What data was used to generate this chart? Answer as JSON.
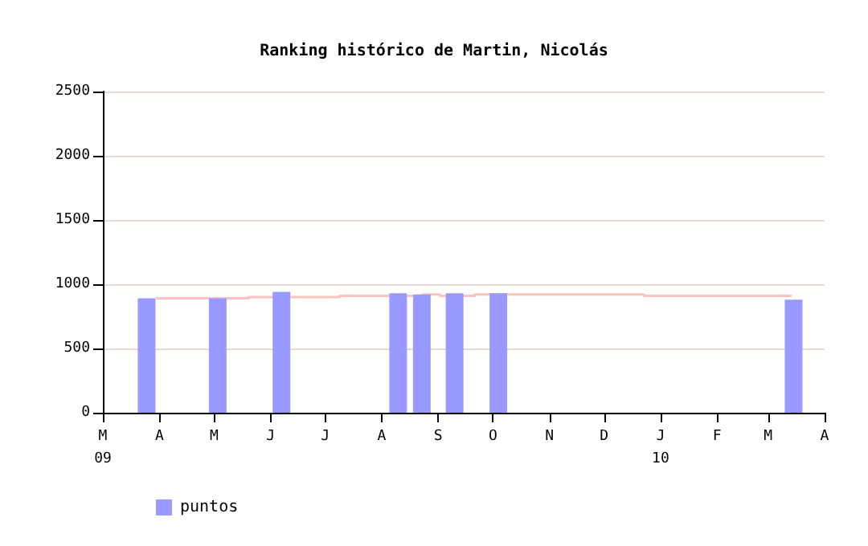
{
  "chart_data": {
    "type": "bar",
    "title": "Ranking histórico de Martin, Nicolás",
    "x": [
      "2009-03-25",
      "2009-05-03",
      "2009-06-07",
      "2009-08-10",
      "2009-08-23",
      "2009-09-10",
      "2009-10-04",
      "2010-03-15"
    ],
    "series": [
      {
        "name": "puntos",
        "color": "#9999ff",
        "values": [
          890,
          890,
          940,
          930,
          920,
          930,
          930,
          880
        ]
      },
      {
        "type": "step",
        "color": "#ffc0c0",
        "x": [
          "2009-03-30",
          "2009-05-20",
          "2009-07-09",
          "2009-08-23",
          "2009-09-02",
          "2009-09-21",
          "2009-12-23",
          "2010-03-14"
        ],
        "values": [
          890,
          900,
          910,
          920,
          910,
          920,
          910,
          910
        ]
      }
    ],
    "xlim": [
      "2009-03-01",
      "2010-04-01"
    ],
    "xticks": [
      {
        "value": "2009-03-01",
        "label": "M\n09"
      },
      {
        "value": "2009-04-01",
        "label": "A"
      },
      {
        "value": "2009-05-01",
        "label": "M"
      },
      {
        "value": "2009-06-01",
        "label": "J"
      },
      {
        "value": "2009-07-01",
        "label": "J"
      },
      {
        "value": "2009-08-01",
        "label": "A"
      },
      {
        "value": "2009-09-01",
        "label": "S"
      },
      {
        "value": "2009-10-01",
        "label": "O"
      },
      {
        "value": "2009-11-01",
        "label": "N"
      },
      {
        "value": "2009-12-01",
        "label": "D"
      },
      {
        "value": "2010-01-01",
        "label": "J\n10"
      },
      {
        "value": "2010-02-01",
        "label": "F"
      },
      {
        "value": "2010-03-01",
        "label": "M"
      },
      {
        "value": "2010-04-01",
        "label": "A"
      }
    ],
    "ylim": [
      0,
      2500
    ],
    "yticks": [
      0,
      500,
      1000,
      1500,
      2000,
      2500
    ],
    "grid": "y",
    "legend": "bottom left"
  }
}
